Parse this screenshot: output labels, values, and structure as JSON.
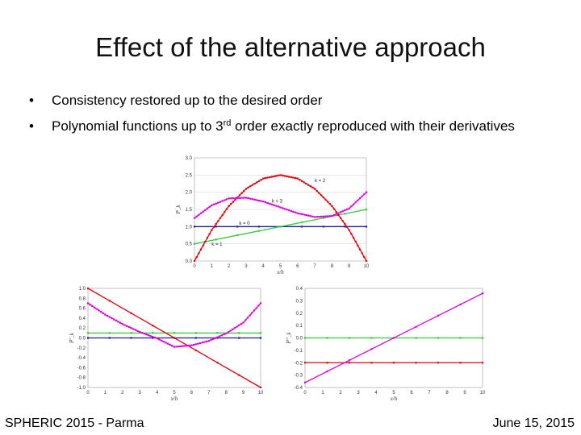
{
  "slide": {
    "title": "Effect of the alternative approach",
    "bullets": [
      {
        "marker": "•",
        "text": "Consistency restored up to the desired order"
      },
      {
        "marker": "•",
        "text_before": "Polynomial functions up to 3",
        "superscript": "rd",
        "text_after": " order exactly reproduced with their derivatives"
      }
    ],
    "footer_left": "SPHERIC 2015 - Parma",
    "footer_right": "June 15, 2015"
  },
  "colors": {
    "red": "#e8000b",
    "magenta": "#e000e0",
    "green": "#33cc33",
    "blue": "#1a1aa0"
  },
  "chart_data": [
    {
      "type": "line",
      "xlabel": "x/h",
      "ylabel": "P_k",
      "xlim": [
        0,
        10
      ],
      "ylim": [
        0,
        3
      ],
      "xticks": [
        0,
        1,
        2,
        3,
        4,
        5,
        6,
        7,
        8,
        9,
        10
      ],
      "yticks": [
        0.0,
        0.5,
        1.0,
        1.5,
        2.0,
        2.5,
        3.0
      ],
      "tick_decimals": 1,
      "grid": true,
      "series": [
        {
          "name": "k = 0",
          "color": "#1a1aa0",
          "points": [
            [
              0,
              1
            ],
            [
              10,
              1
            ]
          ]
        },
        {
          "name": "k = 1",
          "color": "#33cc33",
          "points": [
            [
              0,
              0.5
            ],
            [
              10,
              1.5
            ]
          ]
        },
        {
          "name": "k = 2",
          "color": "#e8000b",
          "points": [
            [
              0,
              0
            ],
            [
              1,
              0.9
            ],
            [
              2,
              1.6
            ],
            [
              3,
              2.1
            ],
            [
              4,
              2.4
            ],
            [
              5,
              2.5
            ],
            [
              6,
              2.4
            ],
            [
              7,
              2.1
            ],
            [
              8,
              1.6
            ],
            [
              9,
              0.9
            ],
            [
              10,
              0
            ]
          ]
        },
        {
          "name": "k = 3",
          "color": "#e000e0",
          "points": [
            [
              0,
              1.25
            ],
            [
              1,
              1.62
            ],
            [
              2,
              1.82
            ],
            [
              3,
              1.84
            ],
            [
              4,
              1.73
            ],
            [
              5,
              1.56
            ],
            [
              6,
              1.39
            ],
            [
              7,
              1.28
            ],
            [
              8,
              1.31
            ],
            [
              9,
              1.53
            ],
            [
              10,
              2.0
            ]
          ]
        }
      ],
      "annotations": [
        {
          "text": "k = 2",
          "x": 7.0,
          "y": 2.3
        },
        {
          "text": "k = 3",
          "x": 4.5,
          "y": 1.7
        },
        {
          "text": "k = 0",
          "x": 2.6,
          "y": 1.05
        },
        {
          "text": "k = 1",
          "x": 1.0,
          "y": 0.45
        }
      ]
    },
    {
      "type": "line",
      "xlabel": "x/h",
      "ylabel": "P'_k",
      "xlim": [
        0,
        10
      ],
      "ylim": [
        -1,
        1
      ],
      "xticks": [
        0,
        1,
        2,
        3,
        4,
        5,
        6,
        7,
        8,
        9,
        10
      ],
      "yticks": [
        -1.0,
        -0.8,
        -0.6,
        -0.4,
        -0.2,
        0.0,
        0.2,
        0.4,
        0.6,
        0.8,
        1.0
      ],
      "tick_decimals": 1,
      "grid": false,
      "series": [
        {
          "color": "#1a1aa0",
          "points": [
            [
              0,
              0
            ],
            [
              10,
              0
            ]
          ]
        },
        {
          "color": "#33cc33",
          "points": [
            [
              0,
              0.1
            ],
            [
              10,
              0.1
            ]
          ]
        },
        {
          "color": "#e8000b",
          "points": [
            [
              0,
              1
            ],
            [
              10,
              -1
            ]
          ]
        },
        {
          "color": "#e000e0",
          "points": [
            [
              0,
              0.7
            ],
            [
              1,
              0.47
            ],
            [
              2,
              0.28
            ],
            [
              3,
              0.12
            ],
            [
              4,
              -0.01
            ],
            [
              5,
              -0.18
            ],
            [
              6,
              -0.15
            ],
            [
              7,
              -0.06
            ],
            [
              8,
              0.09
            ],
            [
              9,
              0.31
            ],
            [
              10,
              0.7
            ]
          ]
        }
      ]
    },
    {
      "type": "line",
      "xlabel": "x/h",
      "ylabel": "P''_k",
      "xlim": [
        0,
        10
      ],
      "ylim": [
        -0.4,
        0.4
      ],
      "xticks": [
        0,
        1,
        2,
        3,
        4,
        5,
        6,
        7,
        8,
        9,
        10
      ],
      "yticks": [
        -0.4,
        -0.3,
        -0.2,
        -0.1,
        0.0,
        0.1,
        0.2,
        0.3,
        0.4
      ],
      "tick_decimals": 1,
      "grid": false,
      "series": [
        {
          "color": "#33cc33",
          "points": [
            [
              0,
              0
            ],
            [
              10,
              0
            ]
          ]
        },
        {
          "color": "#e8000b",
          "points": [
            [
              0,
              -0.2
            ],
            [
              10,
              -0.2
            ]
          ]
        },
        {
          "color": "#e000e0",
          "points": [
            [
              0,
              -0.36
            ],
            [
              10,
              0.36
            ]
          ]
        }
      ]
    }
  ]
}
